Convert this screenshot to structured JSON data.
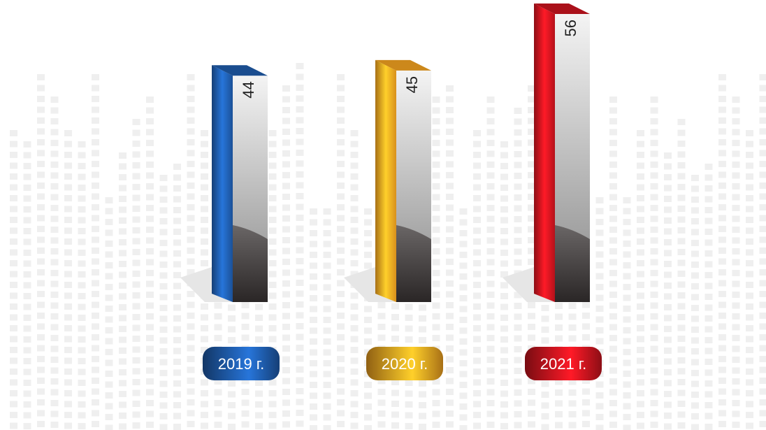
{
  "chart_data": {
    "type": "bar",
    "categories": [
      "2019 г.",
      "2020 г.",
      "2021 г."
    ],
    "values": [
      44,
      45,
      56
    ],
    "colors": [
      "#1e5aa8",
      "#f0a020",
      "#c8141e"
    ]
  }
}
